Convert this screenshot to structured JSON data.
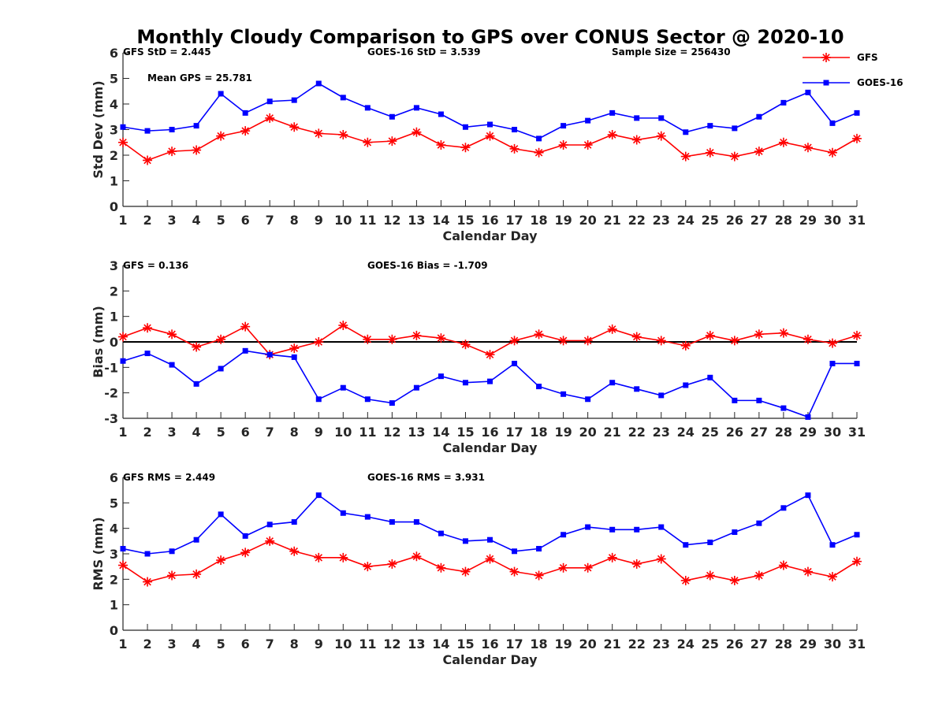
{
  "figure_title": "Monthly Cloudy Comparison to GPS over CONUS Sector @ 2020-10",
  "legend": [
    {
      "name": "GFS",
      "color": "#ff0000",
      "marker": "asterisk"
    },
    {
      "name": "GOES-16",
      "color": "#0000ff",
      "marker": "square"
    }
  ],
  "chart_data": [
    {
      "type": "line",
      "xlabel": "Calendar Day",
      "ylabel": "Std Dev (mm)",
      "xlim": [
        1,
        31
      ],
      "ylim": [
        0,
        6
      ],
      "x": [
        1,
        2,
        3,
        4,
        5,
        6,
        7,
        8,
        9,
        10,
        11,
        12,
        13,
        14,
        15,
        16,
        17,
        18,
        19,
        20,
        21,
        22,
        23,
        24,
        25,
        26,
        27,
        28,
        29,
        30,
        31
      ],
      "x_ticks": [
        "1",
        "2",
        "3",
        "4",
        "5",
        "6",
        "7",
        "8",
        "9",
        "10",
        "11",
        "12",
        "13",
        "14",
        "15",
        "16",
        "17",
        "18",
        "19",
        "20",
        "21",
        "22",
        "23",
        "24",
        "25",
        "26",
        "27",
        "28",
        "29",
        "30",
        "31"
      ],
      "y_ticks": [
        "0",
        "1",
        "2",
        "3",
        "4",
        "5",
        "6"
      ],
      "zero_line": false,
      "annotations": [
        "GFS StD = 2.445",
        "GOES-16 StD = 3.539",
        "Sample Size = 256430",
        "Mean GPS = 25.781"
      ],
      "series": [
        {
          "name": "GFS",
          "color": "#ff0000",
          "marker": "asterisk",
          "values": [
            2.5,
            1.8,
            2.15,
            2.2,
            2.75,
            2.95,
            3.45,
            3.1,
            2.85,
            2.8,
            2.5,
            2.55,
            2.9,
            2.4,
            2.3,
            2.75,
            2.25,
            2.1,
            2.4,
            2.4,
            2.8,
            2.6,
            2.75,
            1.95,
            2.1,
            1.95,
            2.15,
            2.5,
            2.3,
            2.1,
            2.65
          ]
        },
        {
          "name": "GOES-16",
          "color": "#0000ff",
          "marker": "square",
          "values": [
            3.1,
            2.95,
            3.0,
            3.15,
            4.4,
            3.65,
            4.1,
            4.15,
            4.8,
            4.25,
            3.85,
            3.5,
            3.85,
            3.6,
            3.1,
            3.2,
            3.0,
            2.65,
            3.15,
            3.35,
            3.65,
            3.45,
            3.45,
            2.9,
            3.15,
            3.05,
            3.5,
            4.05,
            4.45,
            3.25,
            3.65
          ]
        }
      ]
    },
    {
      "type": "line",
      "xlabel": "Calendar Day",
      "ylabel": "Bias (mm)",
      "xlim": [
        1,
        31
      ],
      "ylim": [
        -3,
        3
      ],
      "x": [
        1,
        2,
        3,
        4,
        5,
        6,
        7,
        8,
        9,
        10,
        11,
        12,
        13,
        14,
        15,
        16,
        17,
        18,
        19,
        20,
        21,
        22,
        23,
        24,
        25,
        26,
        27,
        28,
        29,
        30,
        31
      ],
      "x_ticks": [
        "1",
        "2",
        "3",
        "4",
        "5",
        "6",
        "7",
        "8",
        "9",
        "10",
        "11",
        "12",
        "13",
        "14",
        "15",
        "16",
        "17",
        "18",
        "19",
        "20",
        "21",
        "22",
        "23",
        "24",
        "25",
        "26",
        "27",
        "28",
        "29",
        "30",
        "31"
      ],
      "y_ticks": [
        "-3",
        "-2",
        "-1",
        "0",
        "1",
        "2",
        "3"
      ],
      "zero_line": true,
      "annotations": [
        "GFS = 0.136",
        "GOES-16 Bias = -1.709"
      ],
      "series": [
        {
          "name": "GFS",
          "color": "#ff0000",
          "marker": "asterisk",
          "values": [
            0.2,
            0.55,
            0.3,
            -0.2,
            0.1,
            0.6,
            -0.5,
            -0.25,
            0.0,
            0.65,
            0.1,
            0.1,
            0.25,
            0.15,
            -0.1,
            -0.5,
            0.05,
            0.3,
            0.05,
            0.05,
            0.5,
            0.2,
            0.05,
            -0.15,
            0.25,
            0.05,
            0.3,
            0.35,
            0.1,
            -0.05,
            0.25
          ]
        },
        {
          "name": "GOES-16",
          "color": "#0000ff",
          "marker": "square",
          "values": [
            -0.75,
            -0.45,
            -0.9,
            -1.65,
            -1.05,
            -0.35,
            -0.5,
            -0.6,
            -2.25,
            -1.8,
            -2.25,
            -2.4,
            -1.8,
            -1.35,
            -1.6,
            -1.55,
            -0.85,
            -1.75,
            -2.05,
            -2.25,
            -1.6,
            -1.85,
            -2.1,
            -1.7,
            -1.4,
            -2.3,
            -2.3,
            -2.6,
            -2.95,
            -0.85,
            -0.85
          ]
        }
      ]
    },
    {
      "type": "line",
      "xlabel": "Calendar Day",
      "ylabel": "RMS (mm)",
      "xlim": [
        1,
        31
      ],
      "ylim": [
        0,
        6
      ],
      "x": [
        1,
        2,
        3,
        4,
        5,
        6,
        7,
        8,
        9,
        10,
        11,
        12,
        13,
        14,
        15,
        16,
        17,
        18,
        19,
        20,
        21,
        22,
        23,
        24,
        25,
        26,
        27,
        28,
        29,
        30,
        31
      ],
      "x_ticks": [
        "1",
        "2",
        "3",
        "4",
        "5",
        "6",
        "7",
        "8",
        "9",
        "10",
        "11",
        "12",
        "13",
        "14",
        "15",
        "16",
        "17",
        "18",
        "19",
        "20",
        "21",
        "22",
        "23",
        "24",
        "25",
        "26",
        "27",
        "28",
        "29",
        "30",
        "31"
      ],
      "y_ticks": [
        "0",
        "1",
        "2",
        "3",
        "4",
        "5",
        "6"
      ],
      "zero_line": false,
      "annotations": [
        "GFS RMS = 2.449",
        "GOES-16 RMS = 3.931"
      ],
      "series": [
        {
          "name": "GFS",
          "color": "#ff0000",
          "marker": "asterisk",
          "values": [
            2.55,
            1.9,
            2.15,
            2.2,
            2.75,
            3.05,
            3.5,
            3.1,
            2.85,
            2.85,
            2.5,
            2.6,
            2.9,
            2.45,
            2.3,
            2.8,
            2.3,
            2.15,
            2.45,
            2.45,
            2.85,
            2.6,
            2.8,
            1.95,
            2.15,
            1.95,
            2.15,
            2.55,
            2.3,
            2.1,
            2.7
          ]
        },
        {
          "name": "GOES-16",
          "color": "#0000ff",
          "marker": "square",
          "values": [
            3.2,
            3.0,
            3.1,
            3.55,
            4.55,
            3.7,
            4.15,
            4.25,
            5.3,
            4.6,
            4.45,
            4.25,
            4.25,
            3.8,
            3.5,
            3.55,
            3.1,
            3.2,
            3.75,
            4.05,
            3.95,
            3.95,
            4.05,
            3.35,
            3.45,
            3.85,
            4.2,
            4.8,
            5.3,
            3.35,
            3.75
          ]
        }
      ]
    }
  ]
}
